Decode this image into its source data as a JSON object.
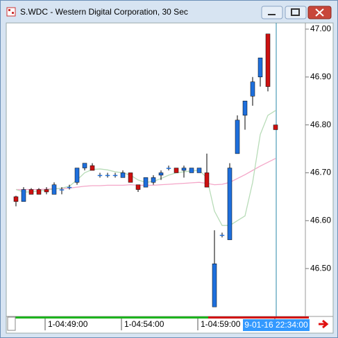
{
  "chart_data": {
    "type": "candlestick",
    "title": "S.WDC - Western Digital Corporation, 30 Sec",
    "categories": [
      null,
      null,
      null,
      null,
      "1-04:49:00",
      null,
      null,
      null,
      null,
      null,
      null,
      null,
      null,
      null,
      "1-04:54:00",
      null,
      null,
      null,
      null,
      null,
      null,
      null,
      null,
      null,
      "1-04:59:00",
      null,
      null,
      null,
      null,
      null,
      null,
      null,
      null,
      null,
      "9-01-16 22:34:00"
    ],
    "open": [
      46.65,
      46.64,
      46.665,
      46.665,
      46.665,
      46.655,
      46.665,
      46.67,
      46.68,
      46.71,
      46.715,
      46.695,
      46.695,
      46.695,
      46.69,
      46.7,
      46.675,
      46.67,
      46.68,
      46.695,
      46.71,
      46.71,
      46.705,
      46.7,
      46.7,
      46.7,
      46.42,
      46.57,
      46.56,
      46.74,
      46.82,
      46.86,
      46.9,
      46.99,
      46.8
    ],
    "high": [
      46.652,
      46.67,
      46.668,
      46.668,
      46.67,
      46.68,
      46.67,
      46.675,
      46.71,
      46.72,
      46.72,
      46.7,
      46.7,
      46.7,
      46.705,
      46.7,
      46.675,
      46.69,
      46.695,
      46.705,
      46.715,
      46.71,
      46.715,
      46.71,
      46.71,
      46.74,
      46.58,
      46.575,
      46.72,
      46.82,
      46.85,
      46.9,
      46.94,
      46.99,
      46.8
    ],
    "low": [
      46.63,
      46.64,
      46.655,
      46.655,
      46.655,
      46.655,
      46.655,
      46.665,
      46.675,
      46.705,
      46.705,
      46.69,
      46.69,
      46.69,
      46.69,
      46.68,
      46.66,
      46.67,
      46.675,
      46.685,
      46.705,
      46.7,
      46.69,
      46.7,
      46.7,
      46.67,
      46.42,
      46.565,
      46.56,
      46.74,
      46.79,
      46.84,
      46.88,
      46.87,
      46.79
    ],
    "close": [
      46.64,
      46.665,
      46.655,
      46.655,
      46.66,
      46.675,
      46.665,
      46.67,
      46.71,
      46.72,
      46.705,
      46.695,
      46.695,
      46.695,
      46.7,
      46.68,
      46.665,
      46.69,
      46.69,
      46.7,
      46.71,
      46.7,
      46.71,
      46.71,
      46.71,
      46.67,
      46.51,
      46.57,
      46.71,
      46.81,
      46.85,
      46.89,
      46.94,
      46.88,
      46.79
    ],
    "up_color": "#1e6fdc",
    "down_color": "#cc1111",
    "lines": [
      {
        "color": "#f4a6c8",
        "values": [
          46.665,
          46.665,
          46.665,
          46.665,
          46.666,
          46.667,
          46.667,
          46.668,
          46.67,
          46.672,
          46.673,
          46.673,
          46.674,
          46.674,
          46.674,
          46.675,
          46.674,
          46.674,
          46.674,
          46.675,
          46.676,
          46.677,
          46.678,
          46.679,
          46.68,
          46.678,
          46.675,
          46.676,
          46.68,
          46.688,
          46.696,
          46.705,
          46.714,
          46.722,
          46.73
        ]
      },
      {
        "color": "#b8dcb8",
        "values": [
          46.665,
          46.66,
          46.66,
          46.662,
          46.664,
          46.666,
          46.668,
          46.672,
          46.685,
          46.7,
          46.707,
          46.708,
          46.706,
          46.702,
          46.7,
          46.695,
          46.685,
          46.68,
          46.682,
          46.688,
          46.695,
          46.7,
          46.702,
          46.704,
          46.705,
          46.69,
          46.62,
          46.59,
          46.59,
          46.6,
          46.61,
          46.68,
          46.78,
          46.82,
          46.83
        ]
      }
    ],
    "ylim": [
      46.4,
      47.01
    ],
    "yticks": [
      {
        "value": 47.0,
        "label": "47.00"
      },
      {
        "value": 46.9,
        "label": "46.90"
      },
      {
        "value": 46.8,
        "label": "46.80"
      },
      {
        "value": 46.7,
        "label": "46.70"
      },
      {
        "value": 46.6,
        "label": "46.60"
      },
      {
        "value": 46.5,
        "label": "46.50"
      }
    ]
  }
}
